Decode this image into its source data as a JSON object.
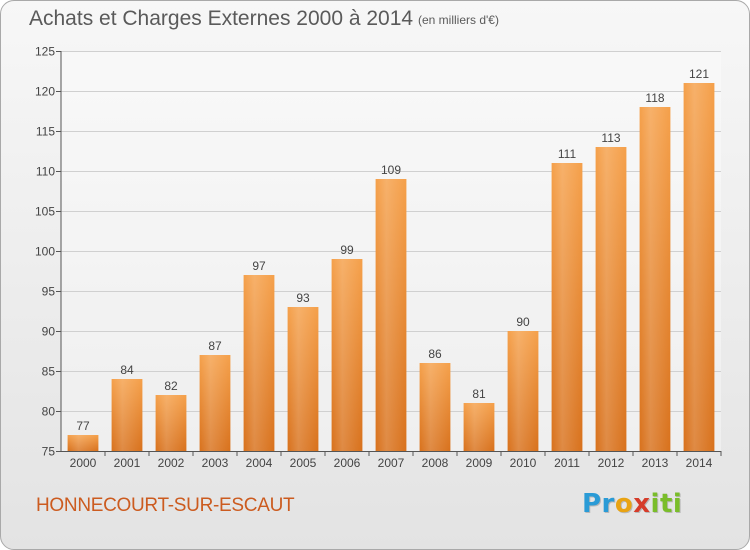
{
  "chart_data": {
    "type": "bar",
    "title": "Achats et Charges Externes 2000 à 2014",
    "subtitle": "(en milliers d'€)",
    "categories": [
      "2000",
      "2001",
      "2002",
      "2003",
      "2004",
      "2005",
      "2006",
      "2007",
      "2008",
      "2009",
      "2010",
      "2011",
      "2012",
      "2013",
      "2014"
    ],
    "values": [
      77,
      84,
      82,
      87,
      97,
      93,
      99,
      109,
      86,
      81,
      90,
      111,
      113,
      118,
      121
    ],
    "ylim": [
      75,
      125
    ],
    "yticks": [
      75,
      80,
      85,
      90,
      95,
      100,
      105,
      110,
      115,
      120,
      125
    ],
    "grid": true,
    "bar_color": "#f08a2c"
  },
  "footer": {
    "commune": "HONNECOURT-SUR-ESCAUT",
    "logo_parts": [
      "Pr",
      "o",
      "x",
      "iti"
    ]
  }
}
